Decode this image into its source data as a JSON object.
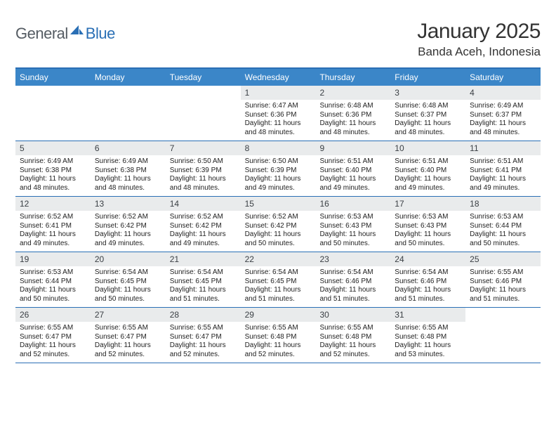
{
  "brand": {
    "part1": "General",
    "part2": "Blue"
  },
  "title": "January 2025",
  "location": "Banda Aceh, Indonesia",
  "colors": {
    "header_bg": "#3b86c8",
    "header_border": "#2a6fb5",
    "daynum_bg": "#e9ebec",
    "text": "#222222",
    "logo_gray": "#555c63",
    "logo_blue": "#2a6fb5"
  },
  "day_headers": [
    "Sunday",
    "Monday",
    "Tuesday",
    "Wednesday",
    "Thursday",
    "Friday",
    "Saturday"
  ],
  "weeks": [
    [
      {
        "blank": true
      },
      {
        "blank": true
      },
      {
        "blank": true
      },
      {
        "n": "1",
        "sr": "6:47 AM",
        "ss": "6:36 PM",
        "dl": "11 hours and 48 minutes."
      },
      {
        "n": "2",
        "sr": "6:48 AM",
        "ss": "6:36 PM",
        "dl": "11 hours and 48 minutes."
      },
      {
        "n": "3",
        "sr": "6:48 AM",
        "ss": "6:37 PM",
        "dl": "11 hours and 48 minutes."
      },
      {
        "n": "4",
        "sr": "6:49 AM",
        "ss": "6:37 PM",
        "dl": "11 hours and 48 minutes."
      }
    ],
    [
      {
        "n": "5",
        "sr": "6:49 AM",
        "ss": "6:38 PM",
        "dl": "11 hours and 48 minutes."
      },
      {
        "n": "6",
        "sr": "6:49 AM",
        "ss": "6:38 PM",
        "dl": "11 hours and 48 minutes."
      },
      {
        "n": "7",
        "sr": "6:50 AM",
        "ss": "6:39 PM",
        "dl": "11 hours and 48 minutes."
      },
      {
        "n": "8",
        "sr": "6:50 AM",
        "ss": "6:39 PM",
        "dl": "11 hours and 49 minutes."
      },
      {
        "n": "9",
        "sr": "6:51 AM",
        "ss": "6:40 PM",
        "dl": "11 hours and 49 minutes."
      },
      {
        "n": "10",
        "sr": "6:51 AM",
        "ss": "6:40 PM",
        "dl": "11 hours and 49 minutes."
      },
      {
        "n": "11",
        "sr": "6:51 AM",
        "ss": "6:41 PM",
        "dl": "11 hours and 49 minutes."
      }
    ],
    [
      {
        "n": "12",
        "sr": "6:52 AM",
        "ss": "6:41 PM",
        "dl": "11 hours and 49 minutes."
      },
      {
        "n": "13",
        "sr": "6:52 AM",
        "ss": "6:42 PM",
        "dl": "11 hours and 49 minutes."
      },
      {
        "n": "14",
        "sr": "6:52 AM",
        "ss": "6:42 PM",
        "dl": "11 hours and 49 minutes."
      },
      {
        "n": "15",
        "sr": "6:52 AM",
        "ss": "6:42 PM",
        "dl": "11 hours and 50 minutes."
      },
      {
        "n": "16",
        "sr": "6:53 AM",
        "ss": "6:43 PM",
        "dl": "11 hours and 50 minutes."
      },
      {
        "n": "17",
        "sr": "6:53 AM",
        "ss": "6:43 PM",
        "dl": "11 hours and 50 minutes."
      },
      {
        "n": "18",
        "sr": "6:53 AM",
        "ss": "6:44 PM",
        "dl": "11 hours and 50 minutes."
      }
    ],
    [
      {
        "n": "19",
        "sr": "6:53 AM",
        "ss": "6:44 PM",
        "dl": "11 hours and 50 minutes."
      },
      {
        "n": "20",
        "sr": "6:54 AM",
        "ss": "6:45 PM",
        "dl": "11 hours and 50 minutes."
      },
      {
        "n": "21",
        "sr": "6:54 AM",
        "ss": "6:45 PM",
        "dl": "11 hours and 51 minutes."
      },
      {
        "n": "22",
        "sr": "6:54 AM",
        "ss": "6:45 PM",
        "dl": "11 hours and 51 minutes."
      },
      {
        "n": "23",
        "sr": "6:54 AM",
        "ss": "6:46 PM",
        "dl": "11 hours and 51 minutes."
      },
      {
        "n": "24",
        "sr": "6:54 AM",
        "ss": "6:46 PM",
        "dl": "11 hours and 51 minutes."
      },
      {
        "n": "25",
        "sr": "6:55 AM",
        "ss": "6:46 PM",
        "dl": "11 hours and 51 minutes."
      }
    ],
    [
      {
        "n": "26",
        "sr": "6:55 AM",
        "ss": "6:47 PM",
        "dl": "11 hours and 52 minutes."
      },
      {
        "n": "27",
        "sr": "6:55 AM",
        "ss": "6:47 PM",
        "dl": "11 hours and 52 minutes."
      },
      {
        "n": "28",
        "sr": "6:55 AM",
        "ss": "6:47 PM",
        "dl": "11 hours and 52 minutes."
      },
      {
        "n": "29",
        "sr": "6:55 AM",
        "ss": "6:48 PM",
        "dl": "11 hours and 52 minutes."
      },
      {
        "n": "30",
        "sr": "6:55 AM",
        "ss": "6:48 PM",
        "dl": "11 hours and 52 minutes."
      },
      {
        "n": "31",
        "sr": "6:55 AM",
        "ss": "6:48 PM",
        "dl": "11 hours and 53 minutes."
      },
      {
        "blank": true
      }
    ]
  ],
  "labels": {
    "sunrise": "Sunrise:",
    "sunset": "Sunset:",
    "daylight": "Daylight:"
  }
}
